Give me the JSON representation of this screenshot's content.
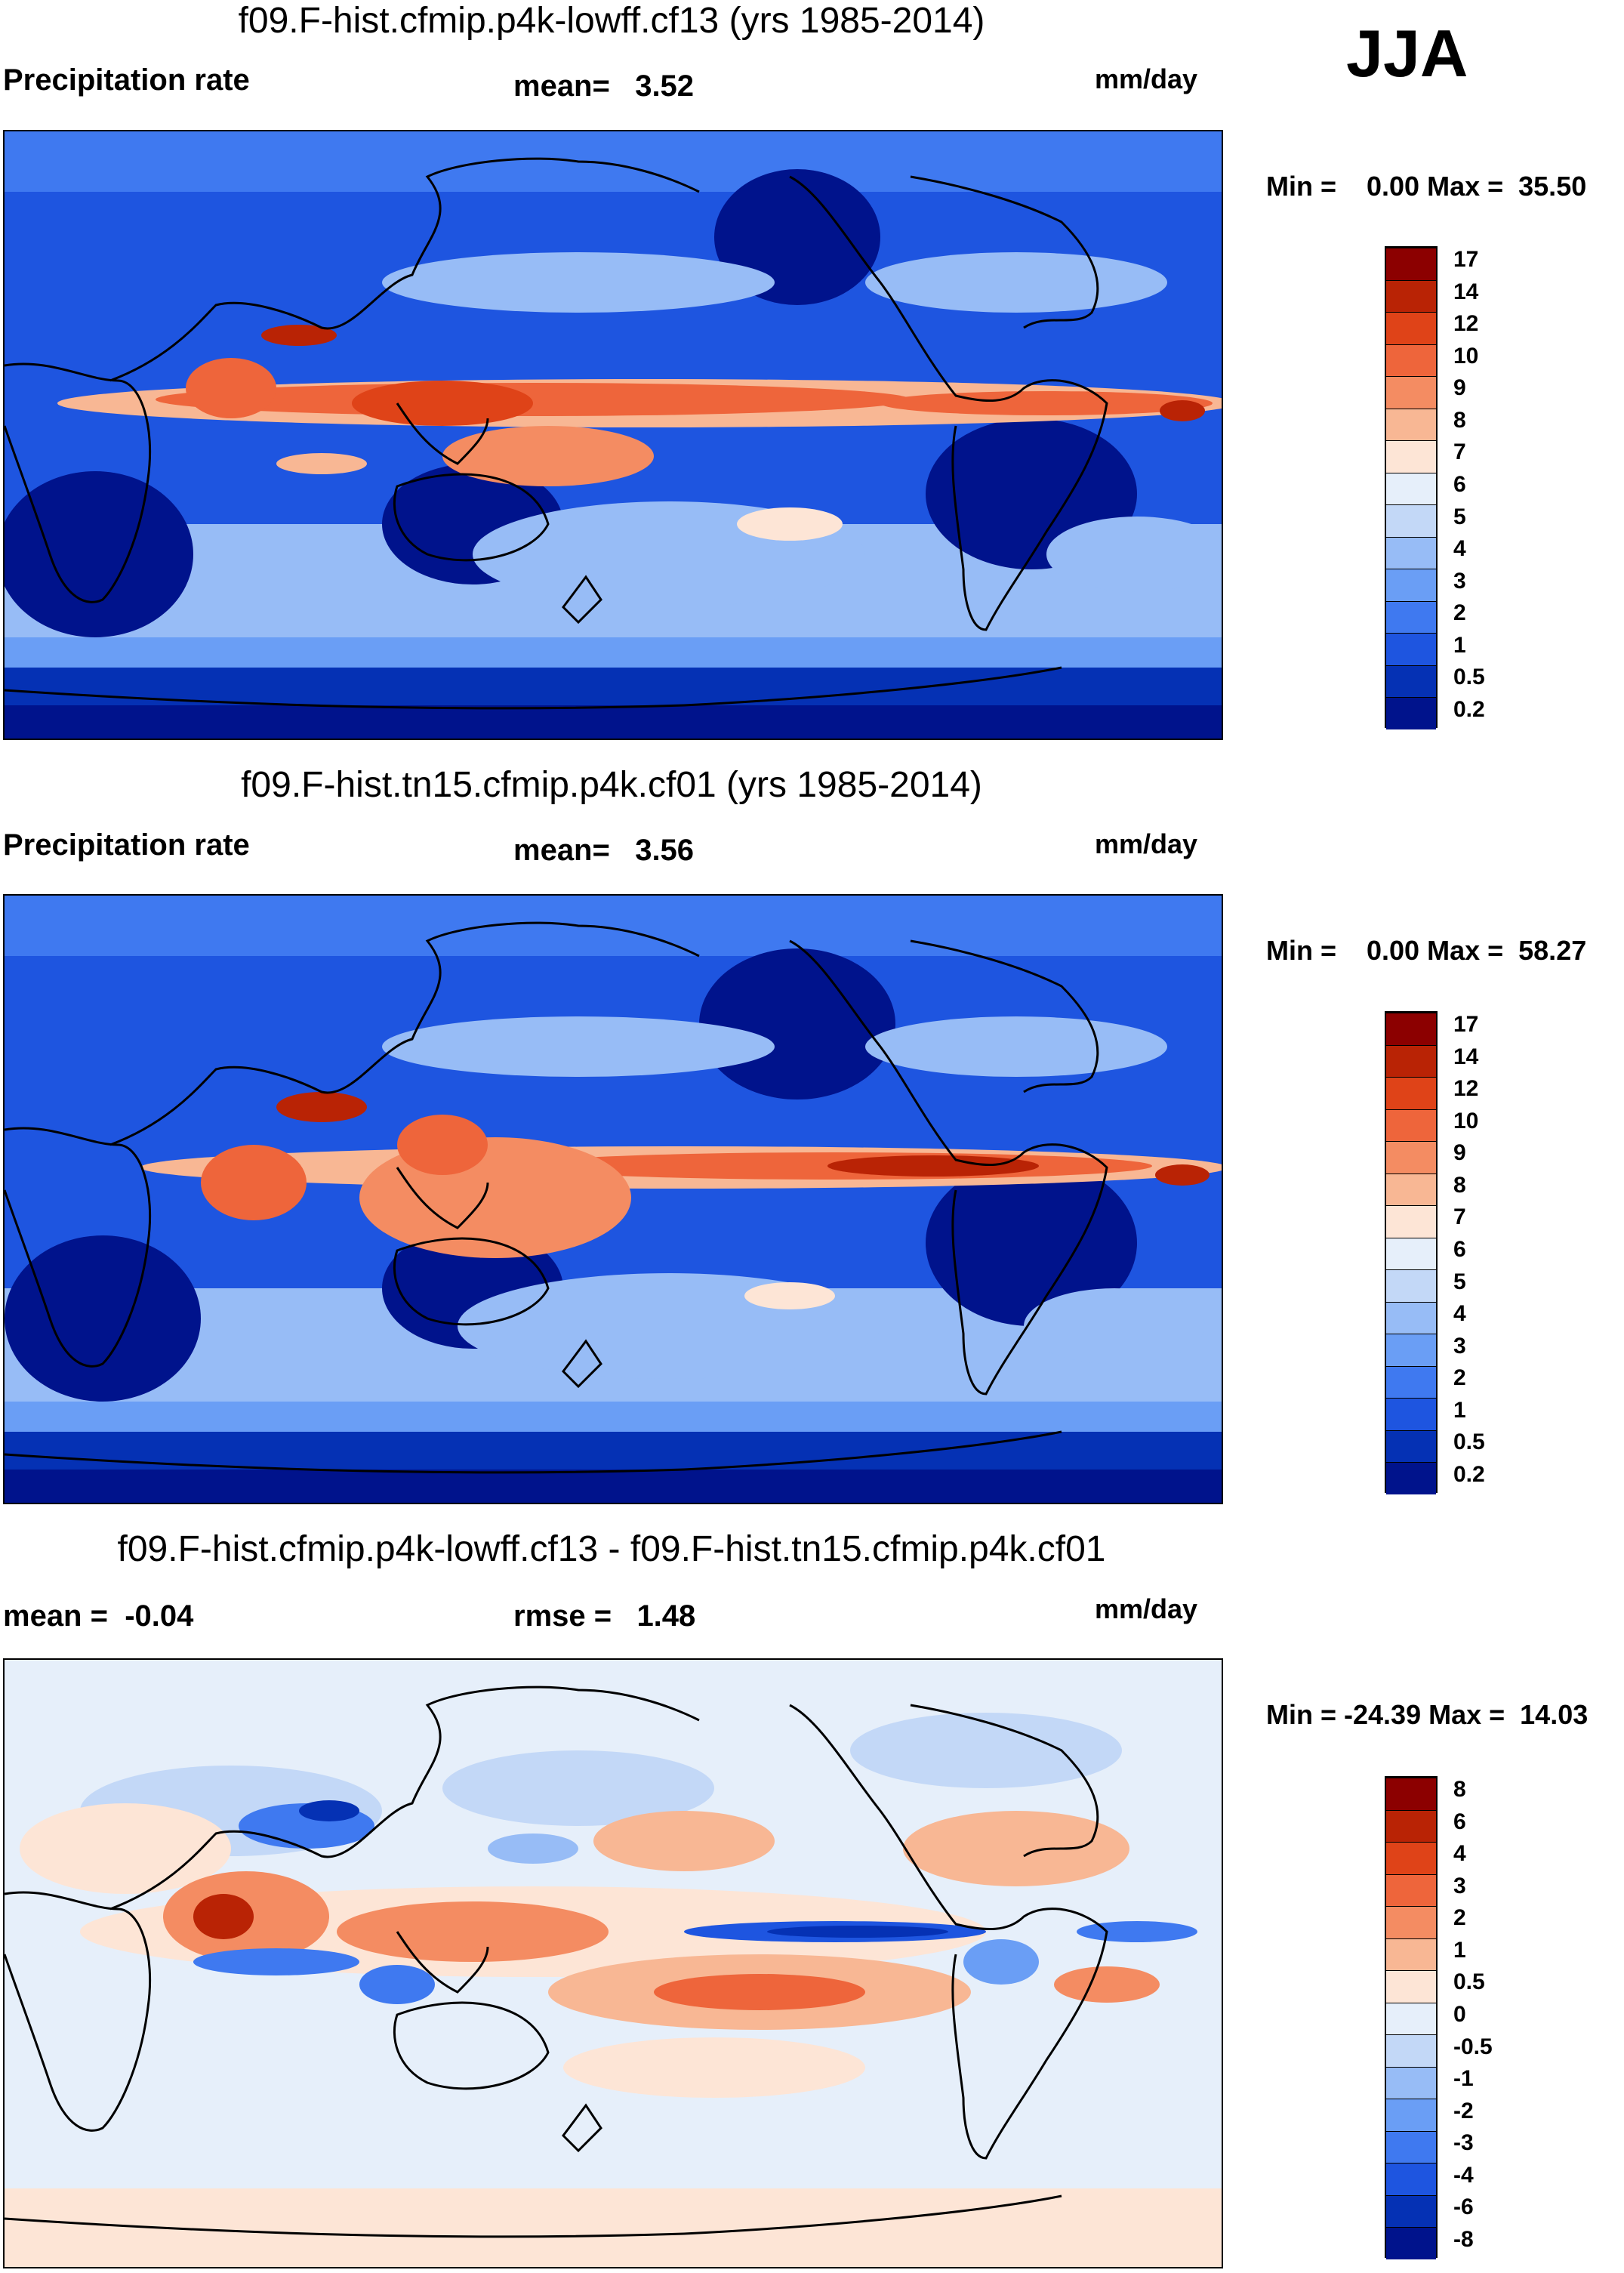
{
  "season": "JJA",
  "units_label": "mm/day",
  "precip_levels": [
    "0.2",
    "0.5",
    "1",
    "2",
    "3",
    "4",
    "5",
    "6",
    "7",
    "8",
    "9",
    "10",
    "12",
    "14",
    "17"
  ],
  "precip_colors": [
    "#00138c",
    "#0531b4",
    "#1e55e0",
    "#3f79f0",
    "#6a9ef5",
    "#97bcf6",
    "#c3d8f7",
    "#e6effa",
    "#fde5d6",
    "#f8b794",
    "#f48c62",
    "#ee653b",
    "#df4318",
    "#b92305",
    "#8c0000"
  ],
  "diff_levels": [
    "-8",
    "-6",
    "-4",
    "-3",
    "-2",
    "-1",
    "-0.5",
    "0",
    "0.5",
    "1",
    "2",
    "3",
    "4",
    "6",
    "8"
  ],
  "diff_colors": [
    "#00138c",
    "#0531b4",
    "#1e55e0",
    "#3f79f0",
    "#6a9ef5",
    "#97bcf6",
    "#c3d8f7",
    "#e6effa",
    "#fde5d6",
    "#f8b794",
    "#f48c62",
    "#ee653b",
    "#df4318",
    "#b92305",
    "#8c0000"
  ],
  "chart_data": [
    {
      "type": "heatmap",
      "title": "f09.F-hist.cfmip.p4k-lowff.cf13 (yrs 1985-2014)",
      "left_label": "Precipitation rate",
      "stat_label": "mean=   3.52",
      "units": "mm/day",
      "minmax_label": "Min =    0.00 Max =  35.50",
      "variable": "Precipitation rate",
      "mean": 3.52,
      "min": 0.0,
      "max": 35.5,
      "period": "yrs 1985-2014",
      "season": "JJA",
      "colorbar_levels": [
        0.2,
        0.5,
        1,
        2,
        3,
        4,
        5,
        6,
        7,
        8,
        9,
        10,
        12,
        14,
        17
      ]
    },
    {
      "type": "heatmap",
      "title": "f09.F-hist.tn15.cfmip.p4k.cf01 (yrs 1985-2014)",
      "left_label": "Precipitation rate",
      "stat_label": "mean=   3.56",
      "units": "mm/day",
      "minmax_label": "Min =    0.00 Max =  58.27",
      "variable": "Precipitation rate",
      "mean": 3.56,
      "min": 0.0,
      "max": 58.27,
      "period": "yrs 1985-2014",
      "season": "JJA",
      "colorbar_levels": [
        0.2,
        0.5,
        1,
        2,
        3,
        4,
        5,
        6,
        7,
        8,
        9,
        10,
        12,
        14,
        17
      ]
    },
    {
      "type": "heatmap",
      "title": "f09.F-hist.cfmip.p4k-lowff.cf13 - f09.F-hist.tn15.cfmip.p4k.cf01",
      "left_label": "mean =  -0.04",
      "stat_label": "rmse =   1.48",
      "units": "mm/day",
      "minmax_label": "Min = -24.39 Max =  14.03",
      "mean": -0.04,
      "rmse": 1.48,
      "min": -24.39,
      "max": 14.03,
      "season": "JJA",
      "colorbar_levels": [
        -8,
        -6,
        -4,
        -3,
        -2,
        -1,
        -0.5,
        0,
        0.5,
        1,
        2,
        3,
        4,
        6,
        8
      ]
    }
  ]
}
